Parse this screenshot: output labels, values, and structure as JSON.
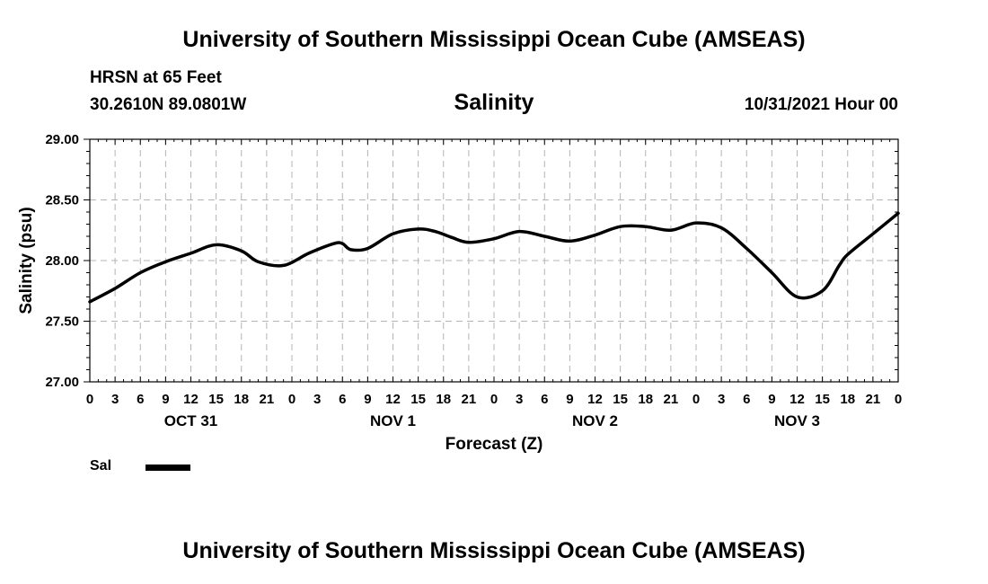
{
  "page": {
    "title_top": "University of Southern Mississippi Ocean Cube (AMSEAS)",
    "title_bottom": "University of Southern Mississippi Ocean Cube (AMSEAS)",
    "station": "HRSN at 65 Feet",
    "coordinates": "30.2610N  89.0801W",
    "datetime": "10/31/2021 Hour 00"
  },
  "chart_data": {
    "type": "line",
    "title": "Salinity",
    "xlabel": "Forecast (Z)",
    "ylabel": "Salinity (psu)",
    "ylim": [
      27.0,
      29.0
    ],
    "xlim": [
      0,
      96
    ],
    "y_ticks": [
      "27.00",
      "27.50",
      "28.00",
      "28.50",
      "29.00"
    ],
    "x_tick_labels": [
      "0",
      "3",
      "6",
      "9",
      "12",
      "15",
      "18",
      "21",
      "0",
      "3",
      "6",
      "9",
      "12",
      "15",
      "18",
      "21",
      "0",
      "3",
      "6",
      "9",
      "12",
      "15",
      "18",
      "21",
      "0",
      "3",
      "6",
      "9",
      "12",
      "15",
      "18",
      "21",
      "0"
    ],
    "day_labels": [
      "OCT 31",
      "NOV 1",
      "NOV 2",
      "NOV 3"
    ],
    "grid": true,
    "series": [
      {
        "name": "Sal",
        "color": "#000000",
        "x": [
          0,
          3,
          6,
          9,
          12,
          15,
          18,
          20,
          23,
          26,
          29,
          30,
          31,
          33,
          36,
          39,
          41,
          43,
          45,
          48,
          51,
          54,
          57,
          60,
          63,
          66,
          69,
          72,
          75,
          78,
          81,
          84,
          87,
          89,
          90,
          93,
          96
        ],
        "y": [
          27.66,
          27.77,
          27.9,
          27.99,
          28.06,
          28.13,
          28.08,
          27.99,
          27.96,
          28.06,
          28.14,
          28.14,
          28.09,
          28.1,
          28.22,
          28.26,
          28.24,
          28.19,
          28.15,
          28.18,
          28.24,
          28.2,
          28.16,
          28.21,
          28.28,
          28.28,
          28.25,
          28.31,
          28.27,
          28.1,
          27.9,
          27.7,
          27.75,
          27.96,
          28.05,
          28.22,
          28.39
        ]
      }
    ]
  }
}
